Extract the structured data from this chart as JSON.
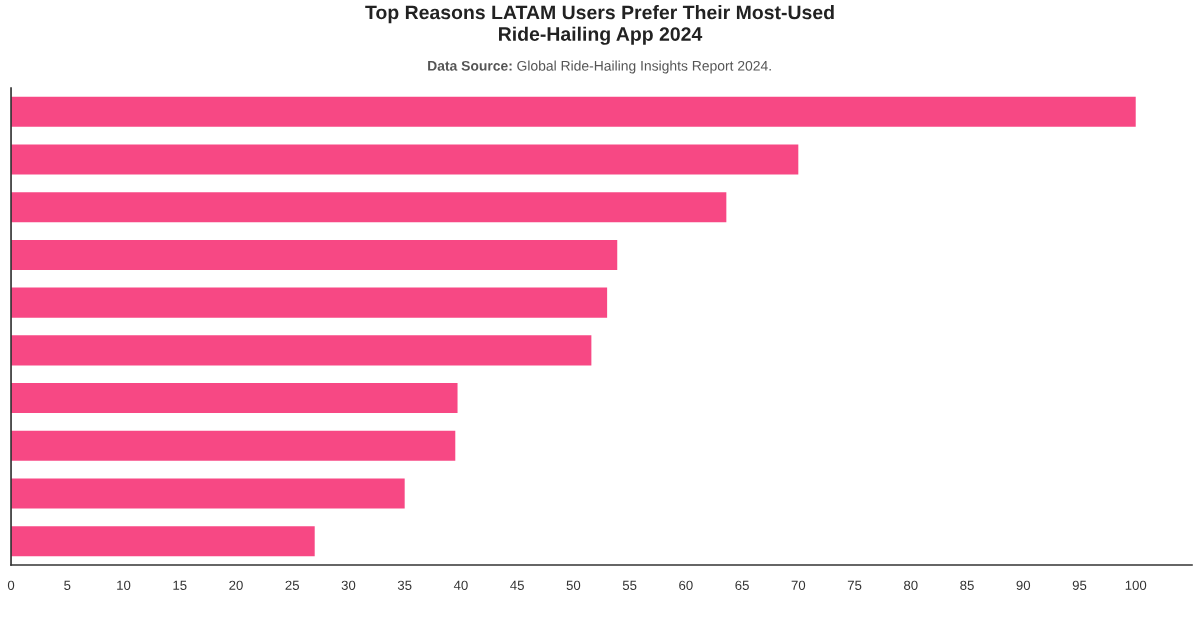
{
  "chart_data": {
    "type": "bar",
    "orientation": "horizontal",
    "title": "Top Reasons LATAM Users Prefer Their Most-Used Ride-Hailing App 2024",
    "subtitle": "Data Source: Global Ride-Hailing Insights Report 2024.",
    "categories": [
      null,
      null,
      null,
      null,
      null,
      null,
      null,
      null,
      null,
      null
    ],
    "values": [
      100,
      70,
      63.6,
      53.9,
      53,
      51.6,
      39.7,
      39.5,
      35,
      27
    ],
    "color": "#f74884",
    "xlim": [
      0,
      105
    ],
    "xticks": [
      0,
      5,
      10,
      15,
      20,
      25,
      30,
      35,
      40,
      45,
      50,
      55,
      60,
      65,
      70,
      75,
      80,
      85,
      90,
      95,
      100
    ],
    "tick_labels": "x"
  }
}
